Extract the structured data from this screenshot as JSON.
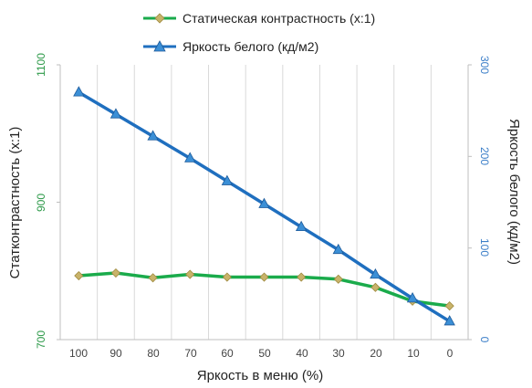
{
  "chart_data": {
    "type": "line",
    "x": [
      100,
      90,
      80,
      70,
      60,
      50,
      40,
      30,
      20,
      10,
      0
    ],
    "xlabel": "Яркость в меню (%)",
    "ylabel_left": "Статконтрастность  (x:1)",
    "ylabel_right": "Яркость белого (кд/м2)",
    "ylim_left": [
      700,
      1100
    ],
    "ylim_right": [
      0,
      300
    ],
    "yticks_left": [
      "1100",
      "900",
      "700"
    ],
    "yticks_right": [
      "300",
      "200",
      "100",
      "0"
    ],
    "xticks": [
      "100",
      "90",
      "80",
      "70",
      "60",
      "50",
      "40",
      "30",
      "20",
      "10",
      "0"
    ],
    "grid": "vertical",
    "legend_position": "top",
    "series": [
      {
        "name": "Статическая контрастность  (x:1)",
        "axis": "left",
        "color": "#1aab4b",
        "marker_color": "#c8b36a",
        "marker": "diamond",
        "values": [
          793,
          797,
          790,
          795,
          791,
          791,
          791,
          788,
          776,
          756,
          749
        ]
      },
      {
        "name": "Яркость белого (кд/м2)",
        "axis": "right",
        "color": "#1f6fbf",
        "marker_color": "#3b8fd6",
        "marker": "triangle",
        "values": [
          270,
          246,
          222,
          198,
          173,
          148,
          123,
          98,
          71,
          45,
          20
        ]
      }
    ]
  },
  "colors": {
    "left_axis": "#2e9a4a",
    "right_axis": "#3b7ec8",
    "grid": "#d9d9d9",
    "axis_text": "#444444"
  }
}
